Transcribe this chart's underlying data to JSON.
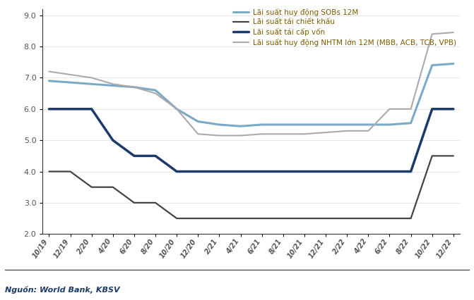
{
  "title": "",
  "source": "Nguồn: World Bank, KBSV",
  "ylim": [
    2.0,
    9.2
  ],
  "yticks": [
    2.0,
    3.0,
    4.0,
    5.0,
    6.0,
    7.0,
    8.0,
    9.0
  ],
  "x_labels": [
    "10/19",
    "12/19",
    "2/20",
    "4/20",
    "6/20",
    "8/20",
    "10/20",
    "12/20",
    "2/21",
    "4/21",
    "6/21",
    "8/21",
    "10/21",
    "12/21",
    "2/22",
    "4/22",
    "6/22",
    "8/22",
    "10/22",
    "12/22"
  ],
  "series": {
    "SOBs": {
      "label": "Lãi suất huy động SOBs 12M",
      "color": "#7BAAC8",
      "linewidth": 2.2,
      "values": [
        6.9,
        6.85,
        6.8,
        6.75,
        6.7,
        6.6,
        6.0,
        5.6,
        5.5,
        5.45,
        5.5,
        5.5,
        5.5,
        5.5,
        5.5,
        5.5,
        5.5,
        5.55,
        7.4,
        7.45
      ]
    },
    "taiChietKhau": {
      "label": "Lãi suất tái chiết khấu",
      "color": "#444444",
      "linewidth": 1.6,
      "values": [
        4.0,
        4.0,
        3.5,
        3.5,
        3.0,
        3.0,
        2.5,
        2.5,
        2.5,
        2.5,
        2.5,
        2.5,
        2.5,
        2.5,
        2.5,
        2.5,
        2.5,
        2.5,
        4.5,
        4.5
      ]
    },
    "taiCapVon": {
      "label": "Lãi suất tái cấp vốn",
      "color": "#1B3A6B",
      "linewidth": 2.5,
      "values": [
        6.0,
        6.0,
        6.0,
        5.0,
        4.5,
        4.5,
        4.0,
        4.0,
        4.0,
        4.0,
        4.0,
        4.0,
        4.0,
        4.0,
        4.0,
        4.0,
        4.0,
        4.0,
        6.0,
        6.0
      ]
    },
    "NHTM": {
      "label": "Lãi suất huy động NHTM lớn 12M (MBB, ACB, TCB, VPB)",
      "color": "#AAAAAA",
      "linewidth": 1.5,
      "values": [
        7.2,
        7.1,
        7.0,
        6.8,
        6.7,
        6.5,
        6.0,
        5.2,
        5.15,
        5.15,
        5.2,
        5.2,
        5.2,
        5.25,
        5.3,
        5.3,
        6.0,
        6.0,
        8.4,
        8.45
      ]
    }
  }
}
